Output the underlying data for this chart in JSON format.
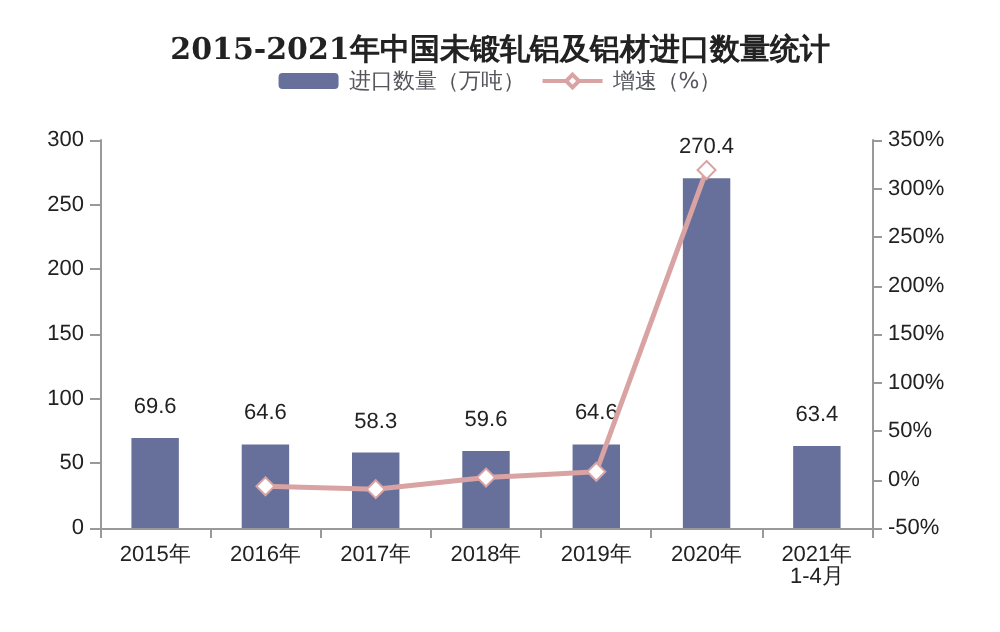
{
  "chart_data": {
    "type": "bar",
    "title": "2015-2021年中国未锻轧铝及铝材进口数量统计",
    "categories": [
      "2015年",
      "2016年",
      "2017年",
      "2018年",
      "2019年",
      "2020年",
      "2021年\n1-4月"
    ],
    "series": [
      {
        "name": "进口数量（万吨）",
        "color": "#66709a",
        "values": [
          69.6,
          64.6,
          58.3,
          59.6,
          64.6,
          270.4,
          63.4
        ],
        "data_labels": true
      },
      {
        "name": "增速（%）",
        "type": "line",
        "axis": "y2",
        "color": "#d9a3a3",
        "values": [
          null,
          -7,
          -10,
          2,
          8,
          319,
          null
        ]
      }
    ],
    "ylim": [
      0,
      300
    ],
    "yticks": [
      0,
      50,
      100,
      150,
      200,
      250,
      300
    ],
    "y2lim": [
      -50,
      350
    ],
    "y2ticks": [
      {
        "value": -50,
        "label": "-50%"
      },
      {
        "value": 0,
        "label": "0%"
      },
      {
        "value": 50,
        "label": "50%"
      },
      {
        "value": 100,
        "label": "100%"
      },
      {
        "value": 150,
        "label": "150%"
      },
      {
        "value": 200,
        "label": "200%"
      },
      {
        "value": 250,
        "label": "250%"
      },
      {
        "value": 300,
        "label": "300%"
      },
      {
        "value": 350,
        "label": "350%"
      }
    ],
    "legend": "top",
    "grid": false,
    "marker": "diamond",
    "line_style": "solid"
  }
}
